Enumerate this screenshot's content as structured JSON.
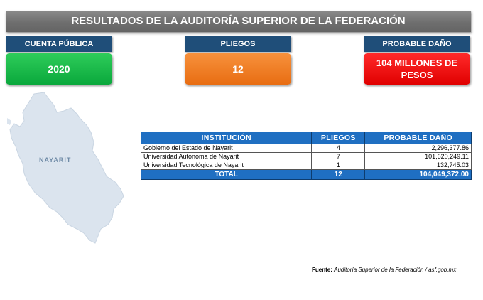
{
  "title": "RESULTADOS DE LA AUDITORÍA SUPERIOR DE LA FEDERACIÓN",
  "cards": {
    "cuenta": {
      "label": "CUENTA PÚBLICA",
      "value": "2020"
    },
    "pliegos": {
      "label": "PLIEGOS",
      "value": "12"
    },
    "dano": {
      "label": "PROBABLE DAÑO",
      "value": "104 MILLONES DE PESOS"
    }
  },
  "map": {
    "label": "NAYARIT",
    "fill_color": "#dbe4ee"
  },
  "table": {
    "headers": [
      "INSTITUCIÓN",
      "PLIEGOS",
      "PROBABLE DAÑO"
    ],
    "rows": [
      {
        "institucion": "Gobierno del Estado de Nayarit",
        "pliegos": "4",
        "dano": "2,296,377.86"
      },
      {
        "institucion": "Universidad Autónoma de Nayarit",
        "pliegos": "7",
        "dano": "101,620,249.11"
      },
      {
        "institucion": "Universidad Tecnológica de Nayarit",
        "pliegos": "1",
        "dano": "132,745.03"
      }
    ],
    "total": {
      "label": "TOTAL",
      "pliegos": "12",
      "dano": "104,049,372.00"
    }
  },
  "source": {
    "label": "Fuente:",
    "text": "Auditoría Superior de la Federación / asf.gob.mx"
  },
  "colors": {
    "header_blue": "#1f4e79",
    "table_blue": "#1f6fc2",
    "green": "#0aa83c",
    "orange": "#e86d12",
    "red": "#e00000"
  }
}
